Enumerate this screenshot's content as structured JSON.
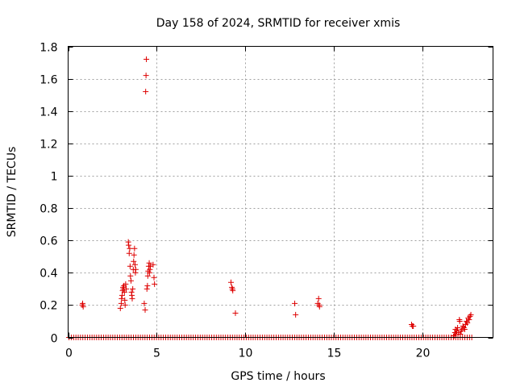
{
  "chart_data": {
    "type": "scatter",
    "title": "Day 158 of 2024, SRMTID for receiver xmis",
    "xlabel": "GPS time / hours",
    "ylabel": "SRMTID / TECUs",
    "xlim": [
      0,
      24
    ],
    "ylim": [
      0,
      1.8
    ],
    "xticks": [
      0,
      5,
      10,
      15,
      20
    ],
    "xtick_labels": [
      "0",
      "5",
      "10",
      "15",
      "20"
    ],
    "yticks": [
      0,
      0.2,
      0.4,
      0.6,
      0.8,
      1,
      1.2,
      1.4,
      1.6,
      1.8
    ],
    "ytick_labels": [
      "0",
      "0.2",
      "0.4",
      "0.6",
      "0.8",
      "1",
      "1.2",
      "1.4",
      "1.6",
      "1.8"
    ],
    "grid": true,
    "marker": "+",
    "marker_color": "#dd0000",
    "baseline": {
      "y": 0,
      "x_start": 0.05,
      "x_end": 22.85,
      "step": 0.13
    },
    "series": [
      {
        "name": "SRMTID",
        "points": [
          [
            0.8,
            0.2
          ],
          [
            0.82,
            0.21
          ],
          [
            0.85,
            0.19
          ],
          [
            2.95,
            0.18
          ],
          [
            3.0,
            0.21
          ],
          [
            3.02,
            0.24
          ],
          [
            3.05,
            0.26
          ],
          [
            3.08,
            0.29
          ],
          [
            3.1,
            0.31
          ],
          [
            3.12,
            0.3
          ],
          [
            3.15,
            0.32
          ],
          [
            3.18,
            0.28
          ],
          [
            3.2,
            0.23
          ],
          [
            3.22,
            0.2
          ],
          [
            3.25,
            0.33
          ],
          [
            3.28,
            0.3
          ],
          [
            3.4,
            0.59
          ],
          [
            3.42,
            0.57
          ],
          [
            3.45,
            0.52
          ],
          [
            3.48,
            0.55
          ],
          [
            3.5,
            0.44
          ],
          [
            3.52,
            0.38
          ],
          [
            3.55,
            0.35
          ],
          [
            3.58,
            0.28
          ],
          [
            3.6,
            0.26
          ],
          [
            3.62,
            0.24
          ],
          [
            3.65,
            0.3
          ],
          [
            3.68,
            0.42
          ],
          [
            3.7,
            0.47
          ],
          [
            3.72,
            0.51
          ],
          [
            3.75,
            0.55
          ],
          [
            3.78,
            0.45
          ],
          [
            3.8,
            0.4
          ],
          [
            3.82,
            0.42
          ],
          [
            4.3,
            0.21
          ],
          [
            4.35,
            0.17
          ],
          [
            4.38,
            1.52
          ],
          [
            4.4,
            1.62
          ],
          [
            4.42,
            1.72
          ],
          [
            4.45,
            0.3
          ],
          [
            4.48,
            0.32
          ],
          [
            4.5,
            0.38
          ],
          [
            4.52,
            0.41
          ],
          [
            4.55,
            0.44
          ],
          [
            4.58,
            0.46
          ],
          [
            4.6,
            0.4
          ],
          [
            4.62,
            0.42
          ],
          [
            4.65,
            0.44
          ],
          [
            4.8,
            0.45
          ],
          [
            4.85,
            0.37
          ],
          [
            4.88,
            0.33
          ],
          [
            9.2,
            0.34
          ],
          [
            9.25,
            0.31
          ],
          [
            9.28,
            0.3
          ],
          [
            9.3,
            0.29
          ],
          [
            9.45,
            0.15
          ],
          [
            12.8,
            0.21
          ],
          [
            12.85,
            0.14
          ],
          [
            14.1,
            0.21
          ],
          [
            14.15,
            0.24
          ],
          [
            14.18,
            0.2
          ],
          [
            14.2,
            0.19
          ],
          [
            19.4,
            0.08
          ],
          [
            19.45,
            0.07
          ],
          [
            19.5,
            0.07
          ],
          [
            21.8,
            0.01
          ],
          [
            21.85,
            0.03
          ],
          [
            21.88,
            0.05
          ],
          [
            21.9,
            0.02
          ],
          [
            21.95,
            0.04
          ],
          [
            22.0,
            0.06
          ],
          [
            22.05,
            0.03
          ],
          [
            22.1,
            0.11
          ],
          [
            22.12,
            0.1
          ],
          [
            22.15,
            0.02
          ],
          [
            22.2,
            0.04
          ],
          [
            22.25,
            0.05
          ],
          [
            22.3,
            0.07
          ],
          [
            22.35,
            0.06
          ],
          [
            22.4,
            0.05
          ],
          [
            22.45,
            0.08
          ],
          [
            22.5,
            0.1
          ],
          [
            22.55,
            0.09
          ],
          [
            22.6,
            0.12
          ],
          [
            22.65,
            0.11
          ],
          [
            22.7,
            0.13
          ],
          [
            22.75,
            0.14
          ]
        ]
      }
    ]
  }
}
